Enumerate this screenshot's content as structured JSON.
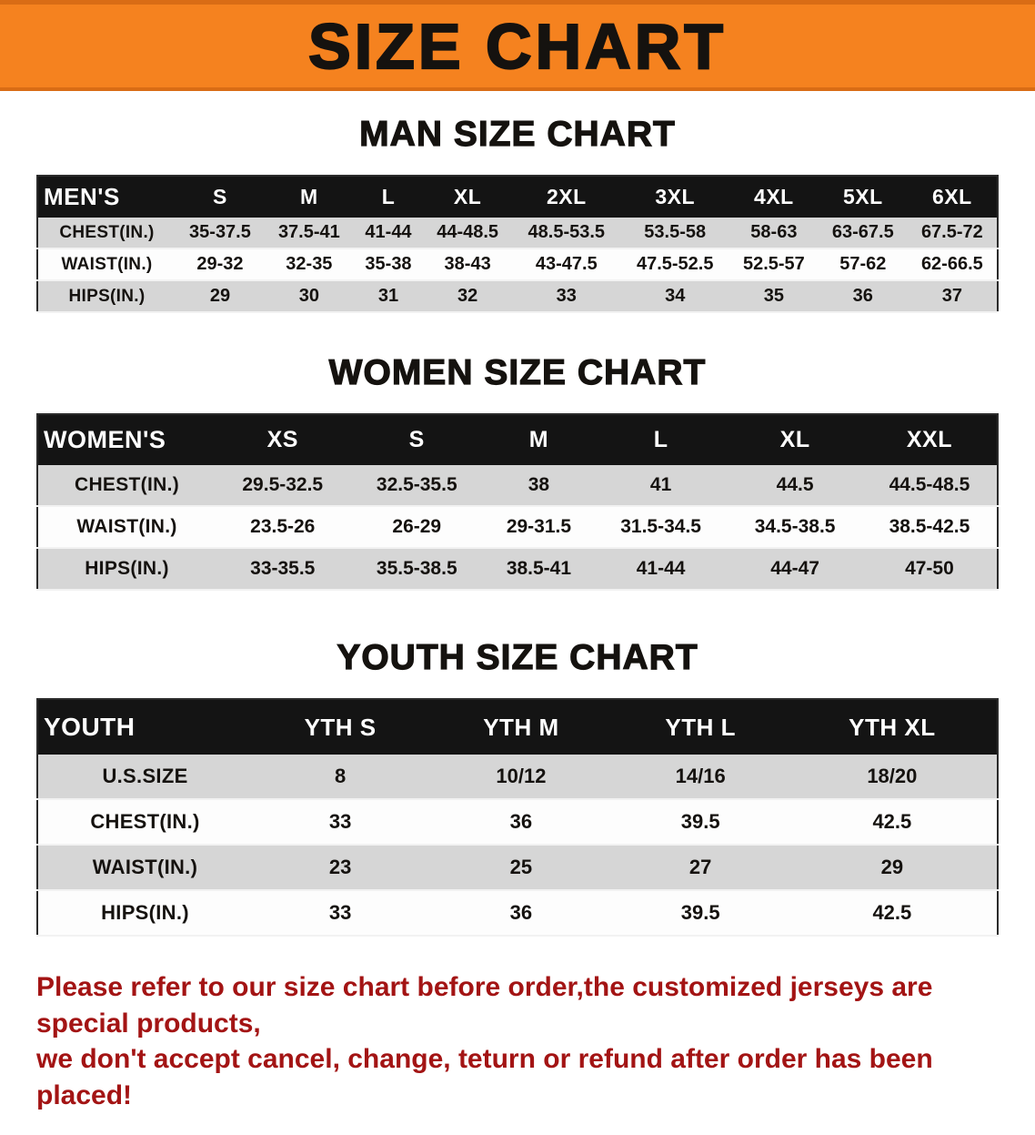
{
  "banner": {
    "title": "SIZE CHART"
  },
  "sections": [
    {
      "id": "men",
      "heading": "MAN SIZE CHART",
      "table": {
        "header": [
          "MEN'S",
          "S",
          "M",
          "L",
          "XL",
          "2XL",
          "3XL",
          "4XL",
          "5XL",
          "6XL"
        ],
        "rows": [
          [
            "CHEST(IN.)",
            "35-37.5",
            "37.5-41",
            "41-44",
            "44-48.5",
            "48.5-53.5",
            "53.5-58",
            "58-63",
            "63-67.5",
            "67.5-72"
          ],
          [
            "WAIST(IN.)",
            "29-32",
            "32-35",
            "35-38",
            "38-43",
            "43-47.5",
            "47.5-52.5",
            "52.5-57",
            "57-62",
            "62-66.5"
          ],
          [
            "HIPS(IN.)",
            "29",
            "30",
            "31",
            "32",
            "33",
            "34",
            "35",
            "36",
            "37"
          ]
        ]
      }
    },
    {
      "id": "women",
      "heading": "WOMEN SIZE CHART",
      "table": {
        "header": [
          "WOMEN'S",
          "XS",
          "S",
          "M",
          "L",
          "XL",
          "XXL"
        ],
        "rows": [
          [
            "CHEST(IN.)",
            "29.5-32.5",
            "32.5-35.5",
            "38",
            "41",
            "44.5",
            "44.5-48.5"
          ],
          [
            "WAIST(IN.)",
            "23.5-26",
            "26-29",
            "29-31.5",
            "31.5-34.5",
            "34.5-38.5",
            "38.5-42.5"
          ],
          [
            "HIPS(IN.)",
            "33-35.5",
            "35.5-38.5",
            "38.5-41",
            "41-44",
            "44-47",
            "47-50"
          ]
        ]
      }
    },
    {
      "id": "youth",
      "heading": "YOUTH SIZE CHART",
      "table": {
        "header": [
          "YOUTH",
          "YTH S",
          "YTH M",
          "YTH L",
          "YTH XL"
        ],
        "rows": [
          [
            "U.S.SIZE",
            "8",
            "10/12",
            "14/16",
            "18/20"
          ],
          [
            "CHEST(IN.)",
            "33",
            "36",
            "39.5",
            "42.5"
          ],
          [
            "WAIST(IN.)",
            "23",
            "25",
            "27",
            "29"
          ],
          [
            "HIPS(IN.)",
            "33",
            "36",
            "39.5",
            "42.5"
          ]
        ]
      }
    }
  ],
  "footer": {
    "line1": "Please refer to our size chart before order,the customized jerseys are special products,",
    "line2": "we don't accept cancel, change, teturn or refund after order has been placed!"
  },
  "colors": {
    "banner_bg": "#f5821f",
    "header_bg": "#141414",
    "row_alt_bg": "#d6d6d6",
    "footer_color": "#a31414"
  }
}
